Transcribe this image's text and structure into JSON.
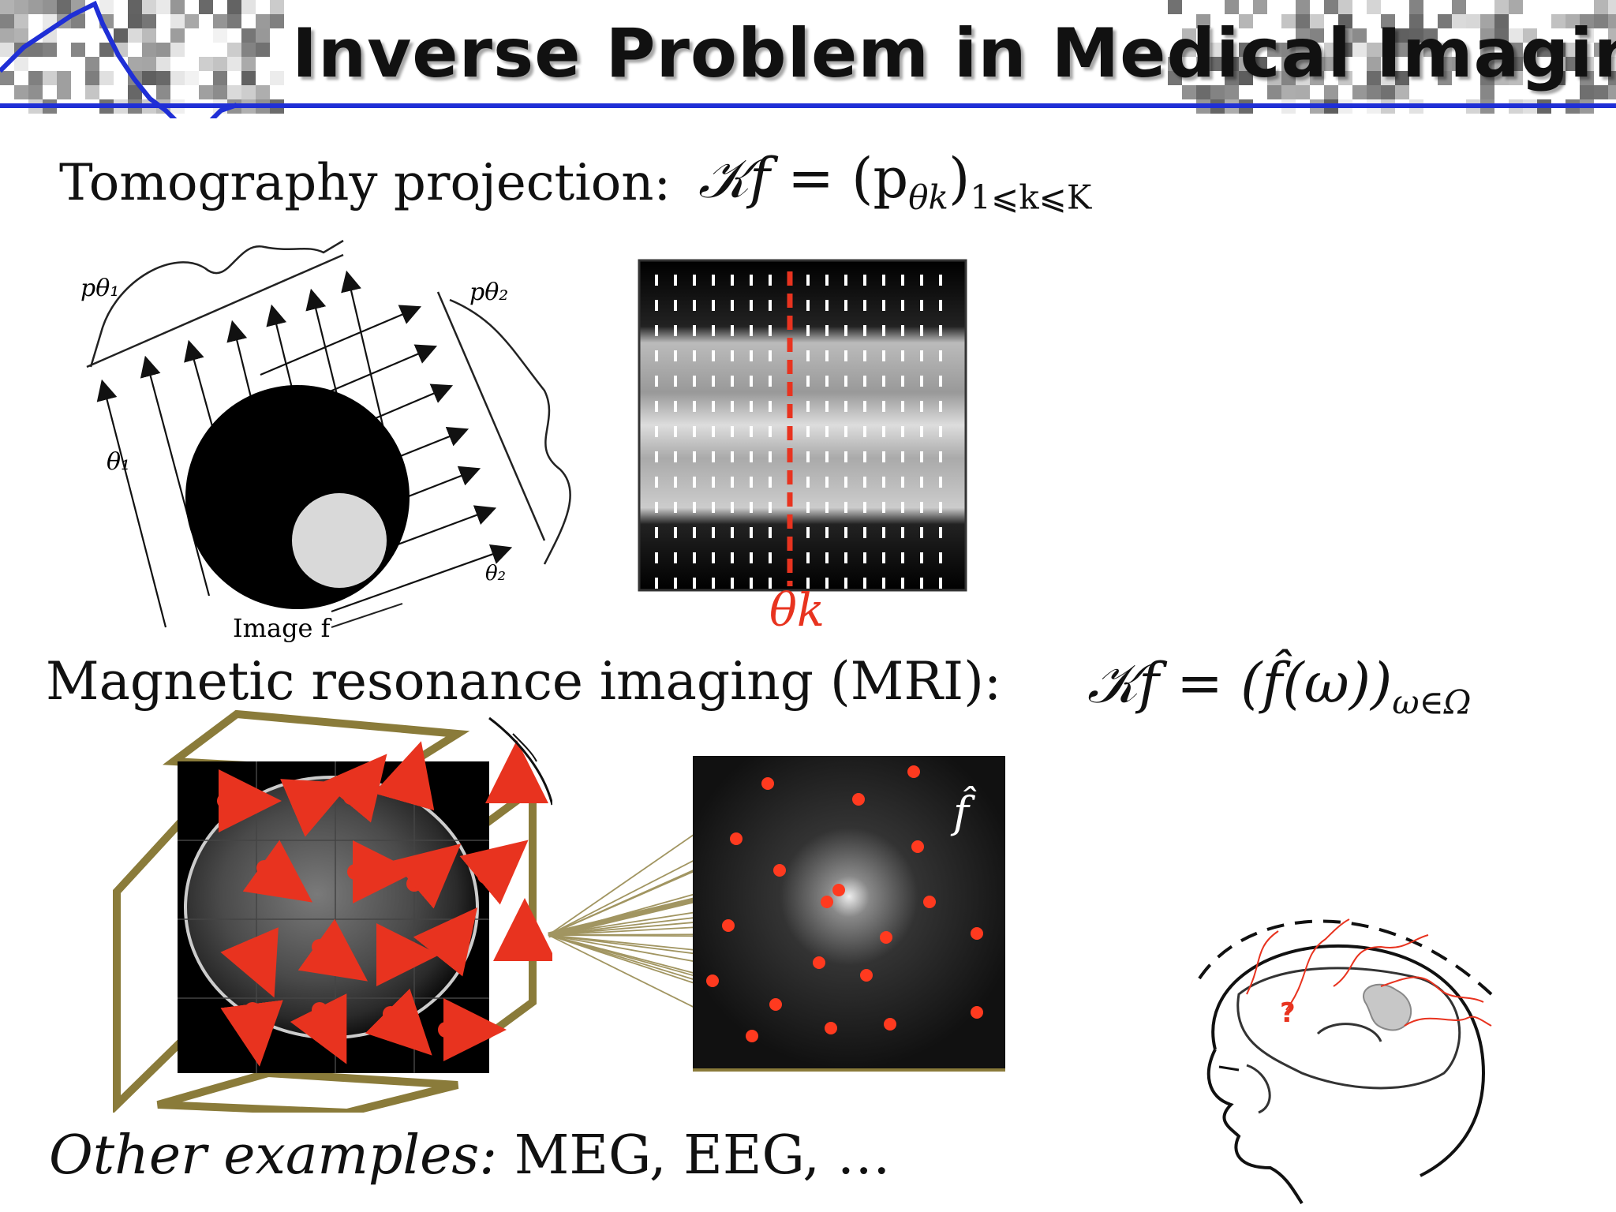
{
  "title": "Inverse Problem in Medical Imaging",
  "tomography": {
    "label": "Tomography projection:",
    "formula_lhs": "𝒦f",
    "formula_eq": " = (p",
    "formula_sub1": "θk",
    "formula_close": ")",
    "formula_sub2": "1⩽k⩽K",
    "diagram": {
      "p_theta1": "pθ₁",
      "p_theta2": "pθ₂",
      "theta1": "θ₁",
      "theta2": "θ₂",
      "image_label": "Image f"
    },
    "sinogram_marker": "θk"
  },
  "mri": {
    "label": "Magnetic resonance imaging (MRI):",
    "formula_lhs": "𝒦f",
    "formula_eq": " = (f̂(ω))",
    "formula_sub": "ω∈Ω",
    "fourier_label": "f̂",
    "question_mark": "?"
  },
  "other": {
    "prefix": "Other examples:",
    "list": " MEG, EEG, …"
  },
  "colors": {
    "accent_blue": "#1f2fd6",
    "red": "#e8331f",
    "olive": "#8a7b3a"
  }
}
